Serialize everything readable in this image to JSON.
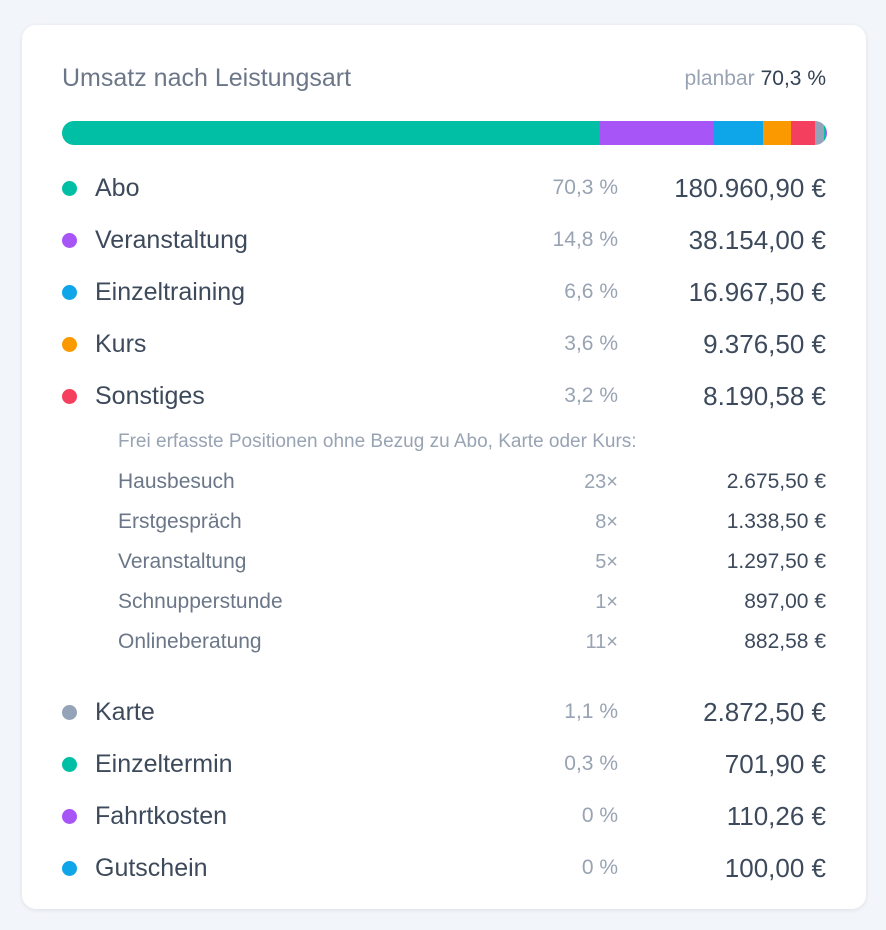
{
  "header": {
    "title": "Umsatz nach Leistungsart",
    "planbar_label": "planbar",
    "planbar_value": "70,3 %"
  },
  "bar": {
    "segments": [
      {
        "name": "Abo",
        "share": 70.3,
        "color": "#00bfa5"
      },
      {
        "name": "Veranstaltung",
        "share": 14.8,
        "color": "#a855f7"
      },
      {
        "name": "Einzeltraining",
        "share": 6.6,
        "color": "#0ea5e9"
      },
      {
        "name": "Kurs",
        "share": 3.6,
        "color": "#fb9a00"
      },
      {
        "name": "Sonstiges",
        "share": 3.2,
        "color": "#f43f5e"
      },
      {
        "name": "Karte",
        "share": 1.1,
        "color": "#94a3b8"
      },
      {
        "name": "Einzeltermin",
        "share": 0.3,
        "color": "#00bfa5"
      },
      {
        "name": "Fahrtkosten",
        "share": 0.05,
        "color": "#a855f7"
      },
      {
        "name": "Gutschein",
        "share": 0.05,
        "color": "#0ea5e9"
      }
    ]
  },
  "categories_top": [
    {
      "label": "Abo",
      "percent": "70,3 %",
      "amount": "180.960,90 €",
      "color": "#00bfa5"
    },
    {
      "label": "Veranstaltung",
      "percent": "14,8 %",
      "amount": "38.154,00 €",
      "color": "#a855f7"
    },
    {
      "label": "Einzeltraining",
      "percent": "6,6 %",
      "amount": "16.967,50 €",
      "color": "#0ea5e9"
    },
    {
      "label": "Kurs",
      "percent": "3,6 %",
      "amount": "9.376,50 €",
      "color": "#fb9a00"
    },
    {
      "label": "Sonstiges",
      "percent": "3,2 %",
      "amount": "8.190,58 €",
      "color": "#f43f5e"
    }
  ],
  "sonstiges_details": {
    "note": "Frei erfasste Positionen ohne Bezug zu Abo, Karte oder Kurs:",
    "items": [
      {
        "label": "Hausbesuch",
        "count": "23×",
        "amount": "2.675,50 €"
      },
      {
        "label": "Erstgespräch",
        "count": "8×",
        "amount": "1.338,50 €"
      },
      {
        "label": "Veranstaltung",
        "count": "5×",
        "amount": "1.297,50 €"
      },
      {
        "label": "Schnupperstunde",
        "count": "1×",
        "amount": "897,00 €"
      },
      {
        "label": "Onlineberatung",
        "count": "11×",
        "amount": "882,58 €"
      }
    ]
  },
  "categories_bottom": [
    {
      "label": "Karte",
      "percent": "1,1 %",
      "amount": "2.872,50 €",
      "color": "#94a3b8"
    },
    {
      "label": "Einzeltermin",
      "percent": "0,3 %",
      "amount": "701,90 €",
      "color": "#00bfa5"
    },
    {
      "label": "Fahrtkosten",
      "percent": "0 %",
      "amount": "110,26 €",
      "color": "#a855f7"
    },
    {
      "label": "Gutschein",
      "percent": "0 %",
      "amount": "100,00 €",
      "color": "#0ea5e9"
    }
  ]
}
